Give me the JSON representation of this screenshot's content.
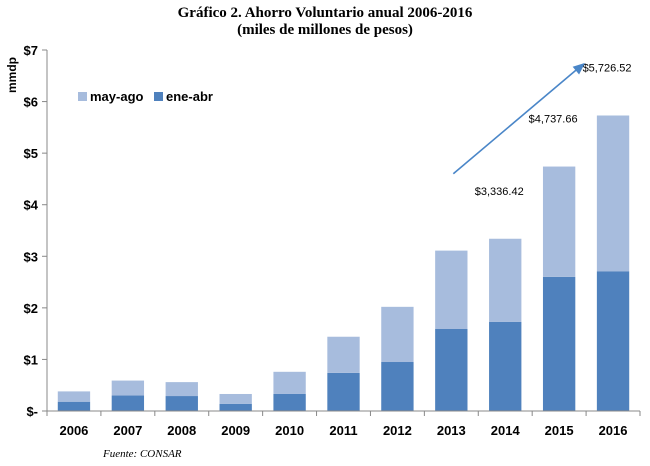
{
  "chart_data": {
    "type": "bar",
    "stacked": true,
    "title": "Gráfico 2. Ahorro Voluntario anual 2006-2016",
    "subtitle": "(miles de millones de pesos)",
    "ylabel": "mmdp",
    "source": "Fuente: CONSAR",
    "ylim": [
      0,
      7
    ],
    "yticks": [
      "$-",
      "$1",
      "$2",
      "$3",
      "$4",
      "$5",
      "$6",
      "$7"
    ],
    "categories": [
      "2006",
      "2007",
      "2008",
      "2009",
      "2010",
      "2011",
      "2012",
      "2013",
      "2014",
      "2015",
      "2016"
    ],
    "series": [
      {
        "name": "ene-abr",
        "color": "#4f81bd",
        "values": [
          0.18,
          0.3,
          0.29,
          0.14,
          0.33,
          0.74,
          0.95,
          1.59,
          1.73,
          2.6,
          2.71
        ]
      },
      {
        "name": "may-ago",
        "color": "#a7bcdd",
        "values": [
          0.2,
          0.29,
          0.27,
          0.19,
          0.43,
          0.7,
          1.07,
          1.52,
          1.61,
          2.14,
          3.02
        ]
      }
    ],
    "legend": {
      "position": "top-left",
      "order": [
        "may-ago",
        "ene-abr"
      ]
    },
    "annotations": [
      {
        "text": "$3,336.42",
        "category": "2014"
      },
      {
        "text": "$4,737.66",
        "category": "2015"
      },
      {
        "text": "$5,726.52",
        "category": "2016"
      }
    ],
    "trend_arrow": {
      "color": "#4a86c8",
      "from": {
        "category": "2013",
        "value": 4.6
      },
      "to": {
        "category": "2016",
        "value": 6.75
      }
    },
    "grid": false
  }
}
